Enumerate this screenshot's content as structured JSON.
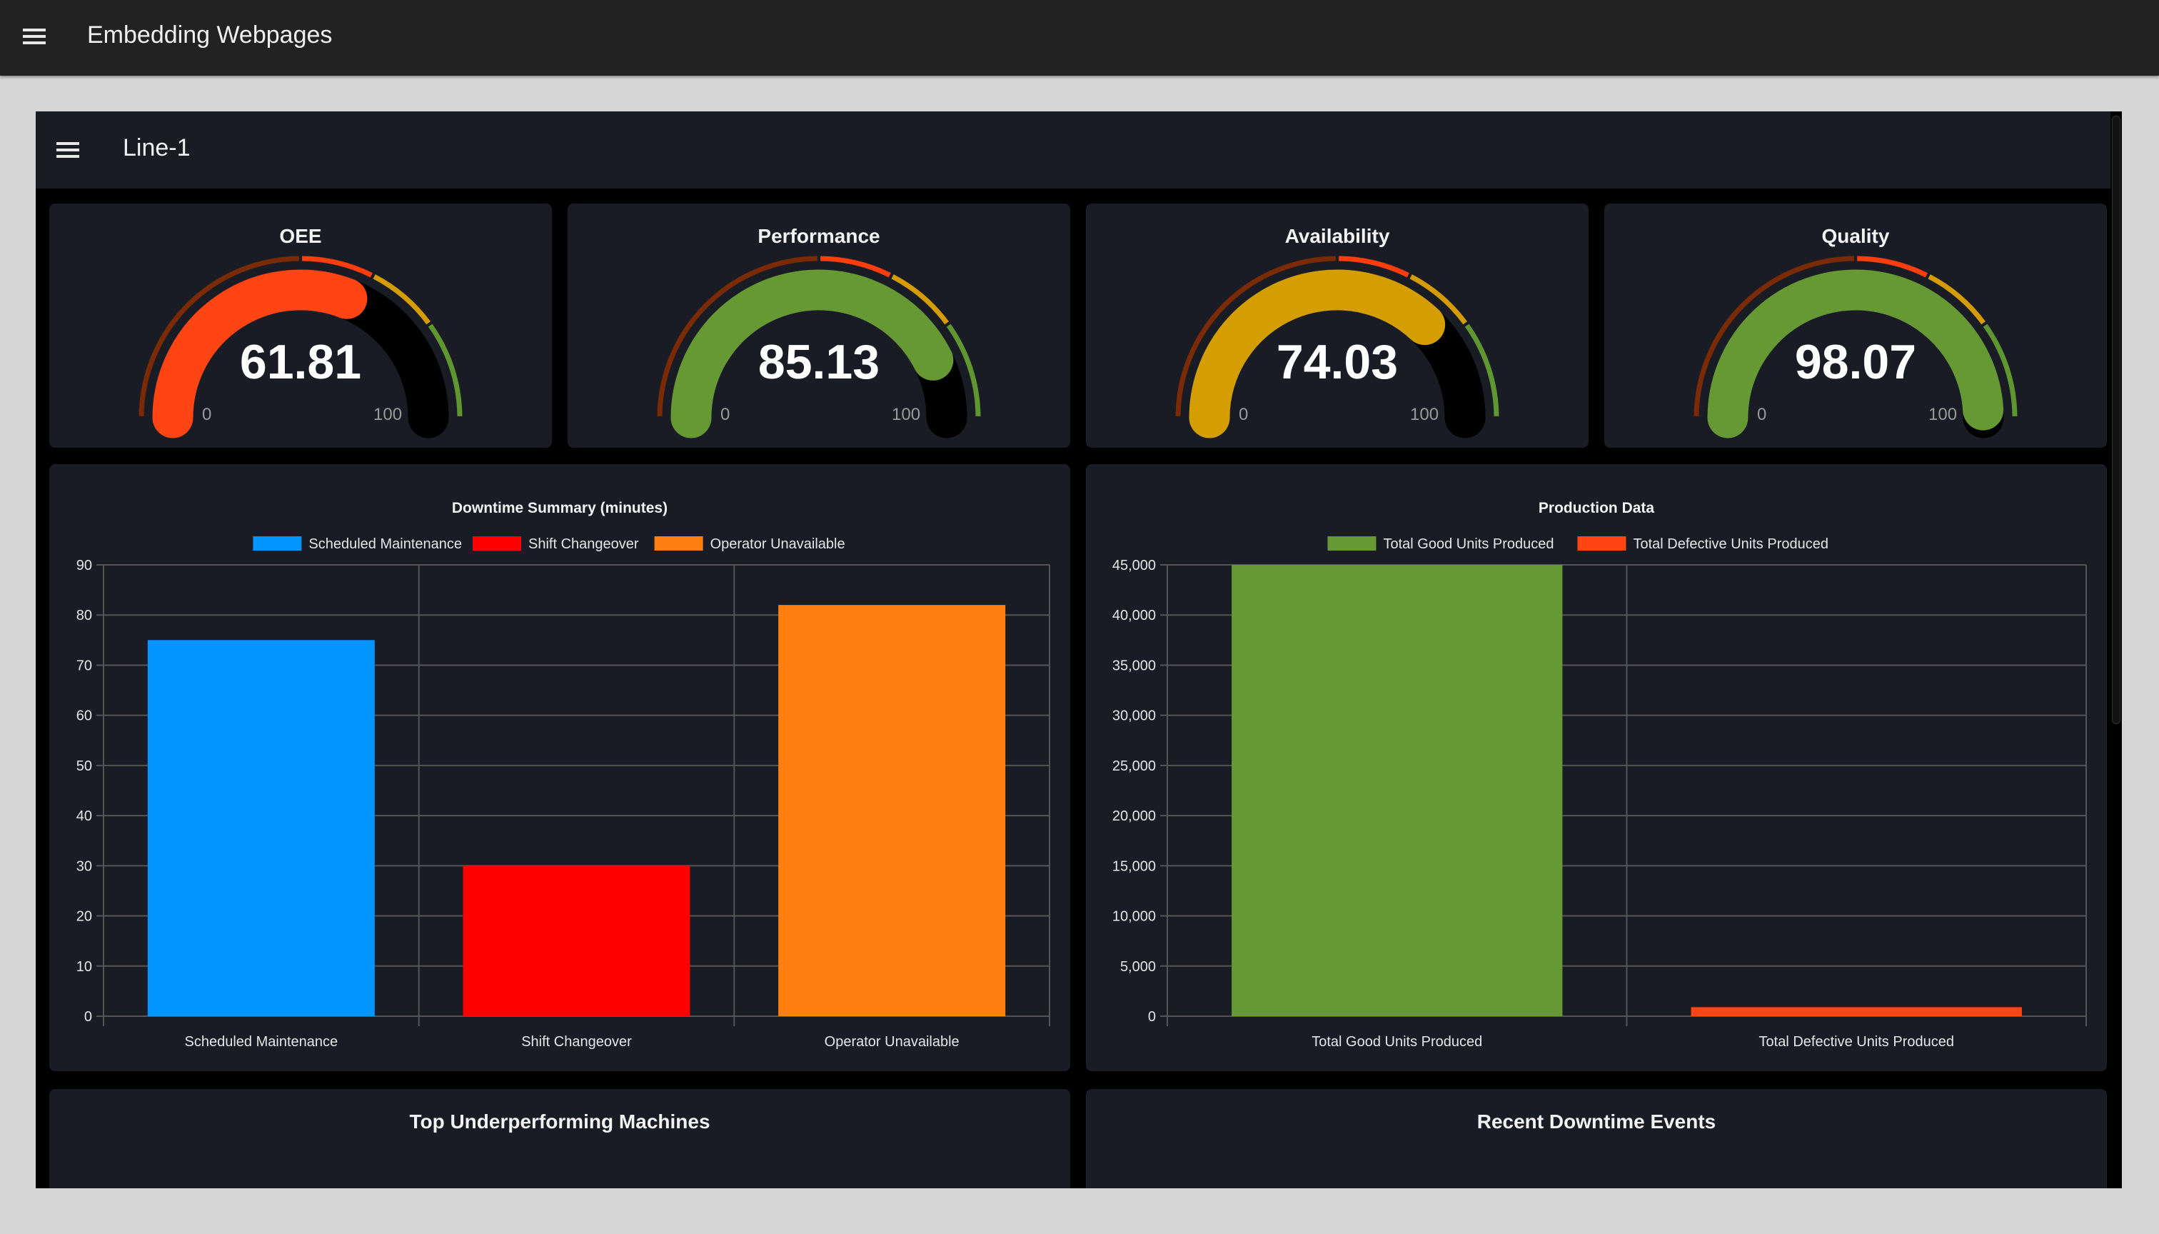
{
  "app": {
    "title": "Embedding Webpages",
    "menu_icon": "hamburger-icon"
  },
  "page": {
    "title": "Line-1",
    "menu_icon": "hamburger-icon"
  },
  "gauges": [
    {
      "title": "OEE",
      "value": "61.81",
      "level": 61.81,
      "min": "0",
      "max": "100",
      "color": "#ff4514"
    },
    {
      "title": "Performance",
      "value": "85.13",
      "level": 85.13,
      "min": "0",
      "max": "100",
      "color": "#669933"
    },
    {
      "title": "Availability",
      "value": "74.03",
      "level": 74.03,
      "min": "0",
      "max": "100",
      "color": "#d49e00"
    },
    {
      "title": "Quality",
      "value": "98.07",
      "level": 98.07,
      "min": "0",
      "max": "100",
      "color": "#669933"
    }
  ],
  "gauge_bands": [
    {
      "from": 0,
      "to": 50,
      "color": "#7a2a04"
    },
    {
      "from": 50,
      "to": 65,
      "color": "#ff3d0d"
    },
    {
      "from": 65,
      "to": 80,
      "color": "#d49c00"
    },
    {
      "from": 80,
      "to": 100,
      "color": "#5f9630"
    }
  ],
  "chart_data": [
    {
      "type": "bar",
      "title": "Downtime Summary (minutes)",
      "categories": [
        "Scheduled Maintenance",
        "Shift Changeover",
        "Operator Unavailable"
      ],
      "values": [
        75,
        30,
        82
      ],
      "colors": [
        "#0095ff",
        "#ff0000",
        "#ff8010"
      ],
      "legend": [
        "Scheduled Maintenance",
        "Shift Changeover",
        "Operator Unavailable"
      ],
      "legend_position": "top",
      "ylim": [
        0,
        90
      ],
      "yticks": [
        "0",
        "10",
        "20",
        "30",
        "40",
        "50",
        "60",
        "70",
        "80",
        "90"
      ],
      "grid": true
    },
    {
      "type": "bar",
      "title": "Production Data",
      "categories": [
        "Total Good Units Produced",
        "Total Defective Units Produced"
      ],
      "values": [
        45000,
        900
      ],
      "colors": [
        "#669933",
        "#ff4514"
      ],
      "legend": [
        "Total Good Units Produced",
        "Total Defective Units Produced"
      ],
      "legend_position": "top",
      "ylim": [
        0,
        45000
      ],
      "yticks": [
        "0",
        "5,000",
        "10,000",
        "15,000",
        "20,000",
        "25,000",
        "30,000",
        "35,000",
        "40,000",
        "45,000"
      ],
      "grid": true
    }
  ],
  "panels": {
    "machines_title": "Top Underperforming Machines",
    "downtime_title": "Recent Downtime Events"
  }
}
